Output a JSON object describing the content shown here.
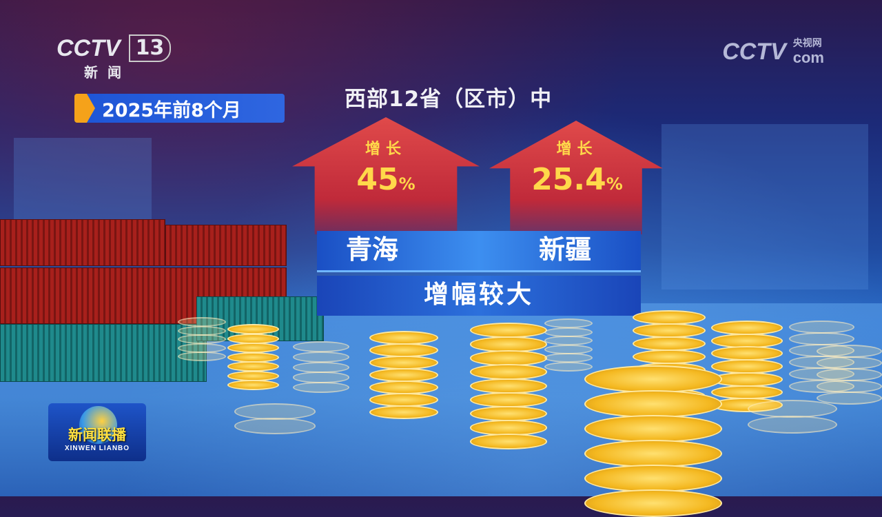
{
  "logo": {
    "brand": "CCTV",
    "channel": "13",
    "channel_name": "新闻"
  },
  "date_tag": "2025年前8个月",
  "watermark": {
    "brand": "CCTV",
    "cn": "央视网",
    "domain": "com"
  },
  "title": "西部12省（区市）中",
  "arrows": [
    {
      "label": "增长",
      "value": "45",
      "unit": "%",
      "region": "青海"
    },
    {
      "label": "增长",
      "value": "25.4",
      "unit": "%",
      "region": "新疆"
    }
  ],
  "summary": "增幅较大",
  "program_logo": {
    "cn": "新闻联播",
    "en": "XINWEN  LIANBO"
  },
  "colors": {
    "arrow": "#d03a44",
    "value_text": "#ffd84a",
    "panel": "#2a6ee0",
    "date_mark": "#f5a21a"
  }
}
